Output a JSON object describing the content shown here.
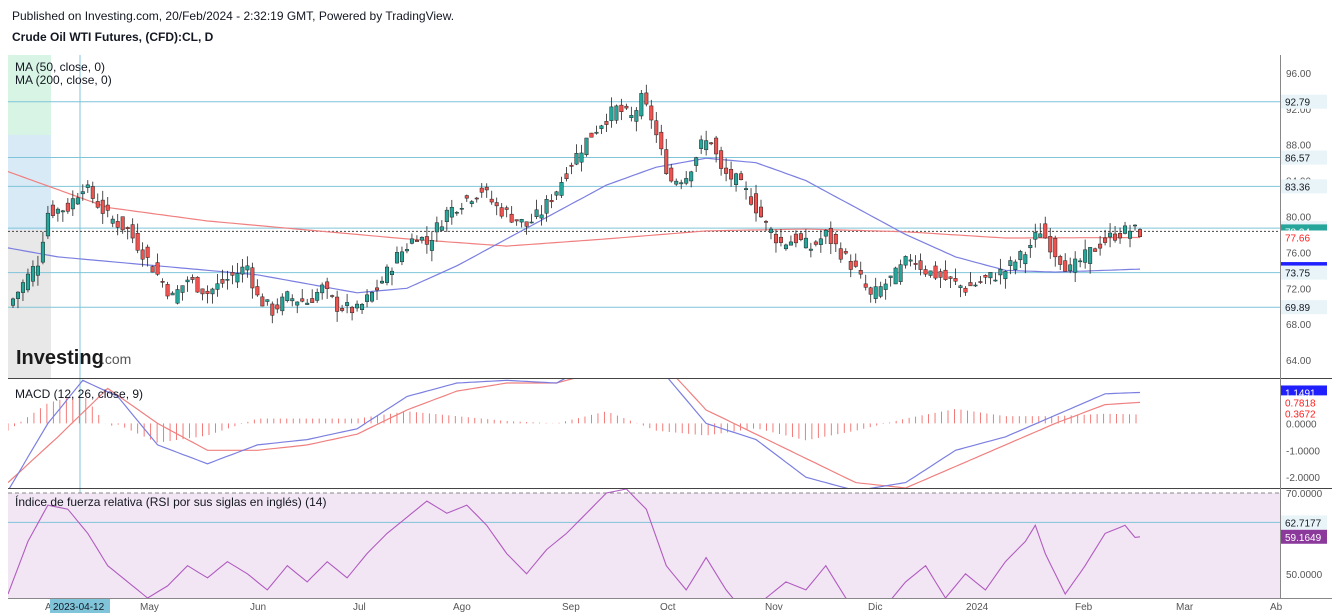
{
  "header": {
    "published": "Published on Investing.com, 20/Feb/2024 - 2:32:19 GMT, Powered by TradingView.",
    "symbol": "Crude Oil WTI Futures, (CFD):CL, D"
  },
  "logo": {
    "text": "Investing",
    "suffix": ".com"
  },
  "colors": {
    "up": "#26a69a",
    "down": "#ef5350",
    "ma50": "#7b7fe0",
    "ma200": "#f08080",
    "hline": "#7fc4d8",
    "rsi": "#b05cc0",
    "rsi_bg": "#f3e6f4"
  },
  "chart_data": [
    {
      "type": "candlestick",
      "title": "Crude Oil WTI Futures, (CFD):CL, D",
      "indicators": [
        "MA (50, close, 0)",
        "MA (200, close, 0)"
      ],
      "y_ticks": [
        "96.00",
        "92.00",
        "88.00",
        "84.00",
        "80.00",
        "76.00",
        "72.00",
        "68.00",
        "64.00"
      ],
      "ylim": [
        62,
        98
      ],
      "horizontal_levels": [
        92.79,
        86.57,
        83.36,
        78.7,
        73.75,
        69.89
      ],
      "price_labels": [
        {
          "text": "92.79",
          "value": 92.79,
          "color": "#e8f4f8",
          "fg": "#131722"
        },
        {
          "text": "86.57",
          "value": 86.57,
          "color": "#e8f4f8",
          "fg": "#131722"
        },
        {
          "text": "83.36",
          "value": 83.36,
          "color": "#e8f4f8",
          "fg": "#131722"
        },
        {
          "text": "78.70",
          "value": 78.7,
          "color": "#e8f4f8",
          "fg": "#131722"
        },
        {
          "text": "78.34",
          "value": 78.34,
          "color": "#26a69a",
          "fg": "#ffffff"
        },
        {
          "text": "77.66",
          "value": 77.66,
          "color": "#ffffff",
          "fg": "#ff2020"
        },
        {
          "text": "74.14",
          "value": 74.14,
          "color": "#2020ff",
          "fg": "#ffffff"
        },
        {
          "text": "73.75",
          "value": 73.75,
          "color": "#e8f4f8",
          "fg": "#131722"
        },
        {
          "text": "69.89",
          "value": 69.89,
          "color": "#e8f4f8",
          "fg": "#131722"
        }
      ],
      "x_labels": [
        "A",
        "2023-04-12",
        "May",
        "Jun",
        "Jul",
        "Ago",
        "Sep",
        "Oct",
        "Nov",
        "Dic",
        "2024",
        "Feb",
        "Mar",
        "Ab"
      ],
      "price_path": [
        [
          0,
          70
        ],
        [
          3,
          72.5
        ],
        [
          6,
          75
        ],
        [
          8,
          80.5
        ],
        [
          12,
          81
        ],
        [
          15,
          83.5
        ],
        [
          20,
          80
        ],
        [
          24,
          78.5
        ],
        [
          27,
          76
        ],
        [
          30,
          73.5
        ],
        [
          33,
          71
        ],
        [
          36,
          73
        ],
        [
          40,
          71.5
        ],
        [
          44,
          73
        ],
        [
          48,
          74.5
        ],
        [
          50,
          71
        ],
        [
          53,
          69.5
        ],
        [
          56,
          71
        ],
        [
          60,
          70.5
        ],
        [
          63,
          72
        ],
        [
          66,
          70
        ],
        [
          70,
          69.5
        ],
        [
          74,
          72
        ],
        [
          78,
          75.5
        ],
        [
          82,
          78
        ],
        [
          84,
          77
        ],
        [
          88,
          80.5
        ],
        [
          92,
          82
        ],
        [
          95,
          83
        ],
        [
          98,
          81
        ],
        [
          101,
          80
        ],
        [
          104,
          79
        ],
        [
          107,
          80.5
        ],
        [
          110,
          83
        ],
        [
          113,
          86
        ],
        [
          116,
          88.5
        ],
        [
          119,
          90.5
        ],
        [
          122,
          92
        ],
        [
          125,
          91
        ],
        [
          127,
          93
        ],
        [
          129,
          91
        ],
        [
          131,
          87
        ],
        [
          133,
          84
        ],
        [
          136,
          84.5
        ],
        [
          139,
          88
        ],
        [
          141,
          88.5
        ],
        [
          143,
          85
        ],
        [
          146,
          84
        ],
        [
          149,
          82
        ],
        [
          152,
          79
        ],
        [
          155,
          77
        ],
        [
          158,
          77.5
        ],
        [
          161,
          76.5
        ],
        [
          164,
          78
        ],
        [
          167,
          76
        ],
        [
          170,
          74
        ],
        [
          173,
          71
        ],
        [
          175,
          72
        ],
        [
          178,
          73.5
        ],
        [
          181,
          75.5
        ],
        [
          184,
          74
        ],
        [
          188,
          73
        ],
        [
          192,
          72
        ],
        [
          196,
          73
        ],
        [
          200,
          74
        ],
        [
          204,
          76
        ],
        [
          207,
          78.5
        ],
        [
          210,
          76
        ],
        [
          213,
          74
        ],
        [
          216,
          75.5
        ],
        [
          219,
          77
        ],
        [
          222,
          78
        ],
        [
          225,
          78.5
        ],
        [
          227,
          78.3
        ]
      ],
      "ma50_path": [
        [
          0,
          76.5
        ],
        [
          10,
          75.5
        ],
        [
          20,
          75
        ],
        [
          30,
          74.5
        ],
        [
          40,
          74
        ],
        [
          50,
          73.5
        ],
        [
          60,
          72.5
        ],
        [
          70,
          71.5
        ],
        [
          80,
          72
        ],
        [
          90,
          74.5
        ],
        [
          100,
          77.5
        ],
        [
          110,
          80.5
        ],
        [
          120,
          83.5
        ],
        [
          130,
          85.5
        ],
        [
          140,
          86.5
        ],
        [
          150,
          86
        ],
        [
          160,
          84
        ],
        [
          170,
          81
        ],
        [
          180,
          78
        ],
        [
          190,
          75.5
        ],
        [
          200,
          74
        ],
        [
          210,
          73.8
        ],
        [
          220,
          74
        ],
        [
          227,
          74.14
        ]
      ],
      "ma200_path": [
        [
          0,
          85
        ],
        [
          20,
          81
        ],
        [
          40,
          79.5
        ],
        [
          60,
          78.5
        ],
        [
          80,
          77.5
        ],
        [
          100,
          76.7
        ],
        [
          120,
          77.5
        ],
        [
          140,
          78.4
        ],
        [
          160,
          78.6
        ],
        [
          180,
          78.3
        ],
        [
          200,
          77.6
        ],
        [
          227,
          77.66
        ]
      ]
    },
    {
      "type": "line",
      "title": "MACD (12, 26, close, 9)",
      "y_ticks": [
        "0.0000",
        "-1.0000",
        "-2.0000"
      ],
      "ylim": [
        -2.4,
        1.65
      ],
      "value_labels": [
        {
          "text": "1.1491",
          "value": 1.1491,
          "color": "#2020ff",
          "fg": "#ffffff"
        },
        {
          "text": "0.7818",
          "value": 0.7818,
          "color": "#ffffff",
          "fg": "#ff2020"
        },
        {
          "text": "0.3672",
          "value": 0.3672,
          "color": "#ffffff",
          "fg": "#ff2020"
        }
      ],
      "macd_path": [
        [
          0,
          -2.5
        ],
        [
          8,
          0
        ],
        [
          15,
          1.6
        ],
        [
          22,
          1
        ],
        [
          30,
          -0.8
        ],
        [
          40,
          -1.5
        ],
        [
          50,
          -0.8
        ],
        [
          60,
          -0.6
        ],
        [
          70,
          -0.2
        ],
        [
          80,
          1
        ],
        [
          90,
          1.5
        ],
        [
          100,
          1.6
        ],
        [
          110,
          1.5
        ],
        [
          120,
          2.5
        ],
        [
          130,
          2.2
        ],
        [
          140,
          0
        ],
        [
          150,
          -0.6
        ],
        [
          160,
          -2
        ],
        [
          170,
          -2.5
        ],
        [
          180,
          -2.2
        ],
        [
          190,
          -1
        ],
        [
          200,
          -0.5
        ],
        [
          210,
          0.3
        ],
        [
          220,
          1.1
        ],
        [
          227,
          1.15
        ]
      ],
      "signal_path": [
        [
          0,
          -2.2
        ],
        [
          10,
          -0.5
        ],
        [
          20,
          1.3
        ],
        [
          30,
          0
        ],
        [
          40,
          -1
        ],
        [
          50,
          -1
        ],
        [
          60,
          -0.8
        ],
        [
          70,
          -0.4
        ],
        [
          80,
          0.5
        ],
        [
          90,
          1.2
        ],
        [
          100,
          1.5
        ],
        [
          110,
          1.5
        ],
        [
          120,
          2
        ],
        [
          130,
          2.5
        ],
        [
          140,
          0.5
        ],
        [
          150,
          -0.4
        ],
        [
          160,
          -1.3
        ],
        [
          170,
          -2.2
        ],
        [
          180,
          -2.4
        ],
        [
          190,
          -1.6
        ],
        [
          200,
          -0.8
        ],
        [
          210,
          0
        ],
        [
          220,
          0.7
        ],
        [
          227,
          0.78
        ]
      ]
    },
    {
      "type": "line",
      "title": "Índice de fuerza relativa (RSI por sus siglas en inglés) (14)",
      "y_ticks": [
        "70.0000",
        "50.0000"
      ],
      "ylim": [
        44,
        71
      ],
      "bands": [
        30,
        70
      ],
      "value_labels": [
        {
          "text": "62.7177",
          "value": 62.7177,
          "color": "#e8f4f8",
          "fg": "#131722"
        },
        {
          "text": "59.1649",
          "value": 59.1649,
          "color": "#8b3a9c",
          "fg": "#ffffff"
        }
      ],
      "rsi_path": [
        [
          0,
          45
        ],
        [
          4,
          58
        ],
        [
          8,
          67
        ],
        [
          12,
          66
        ],
        [
          16,
          60
        ],
        [
          20,
          52
        ],
        [
          24,
          48
        ],
        [
          28,
          44
        ],
        [
          32,
          47
        ],
        [
          36,
          52
        ],
        [
          40,
          49
        ],
        [
          44,
          53
        ],
        [
          48,
          50
        ],
        [
          52,
          46
        ],
        [
          56,
          52
        ],
        [
          60,
          48
        ],
        [
          64,
          53
        ],
        [
          68,
          49
        ],
        [
          72,
          55
        ],
        [
          76,
          60
        ],
        [
          80,
          64
        ],
        [
          84,
          68
        ],
        [
          88,
          65
        ],
        [
          92,
          67
        ],
        [
          96,
          62
        ],
        [
          100,
          55
        ],
        [
          104,
          50
        ],
        [
          108,
          56
        ],
        [
          112,
          60
        ],
        [
          116,
          65
        ],
        [
          120,
          70
        ],
        [
          124,
          71
        ],
        [
          128,
          66
        ],
        [
          132,
          52
        ],
        [
          136,
          46
        ],
        [
          140,
          54
        ],
        [
          144,
          46
        ],
        [
          148,
          40
        ],
        [
          152,
          44
        ],
        [
          156,
          48
        ],
        [
          160,
          46
        ],
        [
          164,
          52
        ],
        [
          168,
          44
        ],
        [
          172,
          38
        ],
        [
          176,
          42
        ],
        [
          180,
          48
        ],
        [
          184,
          52
        ],
        [
          188,
          44
        ],
        [
          192,
          50
        ],
        [
          196,
          46
        ],
        [
          200,
          53
        ],
        [
          204,
          58
        ],
        [
          206,
          62
        ],
        [
          208,
          55
        ],
        [
          212,
          45
        ],
        [
          216,
          52
        ],
        [
          220,
          60
        ],
        [
          224,
          62
        ],
        [
          226,
          59
        ],
        [
          227,
          59.16
        ]
      ]
    }
  ]
}
